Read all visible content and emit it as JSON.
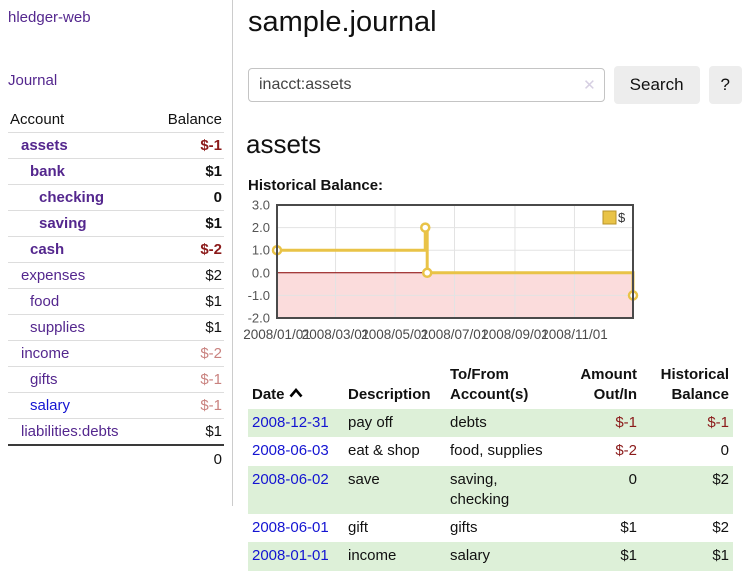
{
  "colors": {
    "link_purple": "#54278e",
    "link_blue": "#1414d2",
    "negative_strong": "#8b1a1a",
    "negative_muted": "#c9827f",
    "row_shade_green": "#ddf0d8",
    "chart_gold": "#e9c347",
    "chart_negative_fill": "#fbdcdc",
    "chart_zero_line": "#8b0000"
  },
  "sidebar": {
    "app_link": "hledger-web",
    "journal_link": "Journal",
    "table": {
      "account_header": "Account",
      "balance_header": "Balance",
      "rows": [
        {
          "name": "assets",
          "balance": "$-1",
          "indent": 0,
          "bold": true,
          "neg": "strong"
        },
        {
          "name": "bank",
          "balance": "$1",
          "indent": 1,
          "bold": true
        },
        {
          "name": "checking",
          "balance": "0",
          "indent": 2,
          "bold": true
        },
        {
          "name": "saving",
          "balance": "$1",
          "indent": 2,
          "bold": true
        },
        {
          "name": "cash",
          "balance": "$-2",
          "indent": 1,
          "bold": true,
          "neg": "strong"
        },
        {
          "name": "expenses",
          "balance": "$2",
          "indent": 0
        },
        {
          "name": "food",
          "balance": "$1",
          "indent": 1
        },
        {
          "name": "supplies",
          "balance": "$1",
          "indent": 1
        },
        {
          "name": "income",
          "balance": "$-2",
          "indent": 0,
          "neg": "muted"
        },
        {
          "name": "gifts",
          "balance": "$-1",
          "indent": 1,
          "neg": "muted"
        },
        {
          "name": "salary",
          "balance": "$-1",
          "indent": 1,
          "neg": "muted",
          "link_blue": true
        },
        {
          "name": "liabilities:debts",
          "balance": "$1",
          "indent": 0
        }
      ],
      "total": "0"
    }
  },
  "header": {
    "title": "sample.journal"
  },
  "search": {
    "value": "inacct:assets",
    "clear_icon": "✕",
    "button_label": "Search",
    "help_label": "?"
  },
  "main": {
    "account_heading": "assets",
    "chart_label": "Historical Balance:"
  },
  "chart_data": {
    "type": "line",
    "title": "Historical Balance:",
    "step": true,
    "x_range": [
      "2008/01/01",
      "2008/12/31"
    ],
    "ylim": [
      -2,
      3
    ],
    "y_ticks": [
      3.0,
      2.0,
      1.0,
      0.0,
      -1.0,
      -2.0
    ],
    "x_ticks": [
      "2008/01/01",
      "2008/03/01",
      "2008/05/01",
      "2008/07/01",
      "2008/09/01",
      "2008/11/01"
    ],
    "grid": true,
    "legend": "$",
    "legend_position": "top-right",
    "series": [
      {
        "name": "$",
        "points": [
          [
            "2008/01/01",
            1
          ],
          [
            "2008/06/01",
            2
          ],
          [
            "2008/06/03",
            0
          ],
          [
            "2008/12/31",
            -1
          ]
        ]
      }
    ]
  },
  "register": {
    "headers": [
      "Date",
      "Description",
      "To/From Account(s)",
      "Amount Out/In",
      "Historical Balance"
    ],
    "rows": [
      {
        "date": "2008-12-31",
        "description": "pay off",
        "accounts": "debts",
        "amount": "$-1",
        "balance": "$-1",
        "amount_neg": true,
        "balance_neg": true,
        "shaded": true
      },
      {
        "date": "2008-06-03",
        "description": "eat & shop",
        "accounts": "food, supplies",
        "amount": "$-2",
        "balance": "0",
        "amount_neg": true,
        "balance_neg": false,
        "shaded": false
      },
      {
        "date": "2008-06-02",
        "description": "save",
        "accounts": "saving, checking",
        "amount": "0",
        "balance": "$2",
        "amount_neg": false,
        "balance_neg": false,
        "shaded": true
      },
      {
        "date": "2008-06-01",
        "description": "gift",
        "accounts": "gifts",
        "amount": "$1",
        "balance": "$2",
        "amount_neg": false,
        "balance_neg": false,
        "shaded": false
      },
      {
        "date": "2008-01-01",
        "description": "income",
        "accounts": "salary",
        "amount": "$1",
        "balance": "$1",
        "amount_neg": false,
        "balance_neg": false,
        "shaded": true
      }
    ]
  }
}
